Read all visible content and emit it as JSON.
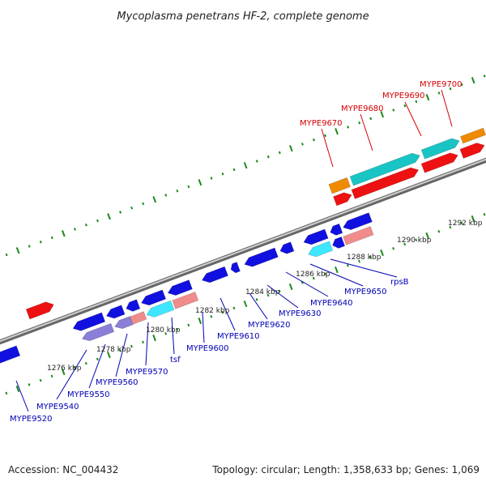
{
  "title": "Mycoplasma penetrans HF-2, complete genome",
  "footer": {
    "accession": "Accession: NC_004432",
    "summary": "Topology: circular; Length: 1,358,633 bp; Genes: 1,069"
  },
  "colors": {
    "forward_label": "#d40000",
    "reverse_label": "#0000b4",
    "dot_track": "#1a8a1a",
    "backbone": "#999999"
  },
  "ticks": [
    "1276 kbp",
    "1278 kbp",
    "1280 kbp",
    "1282 kbp",
    "1284 kbp",
    "1286 kbp",
    "1288 kbp",
    "1290 kbp",
    "1292 kbp"
  ],
  "forward_labels": [
    "MYPE9670",
    "MYPE9680",
    "MYPE9690",
    "MYPE9700"
  ],
  "reverse_labels": [
    "MYPE9520",
    "MYPE9540",
    "MYPE9550",
    "MYPE9560",
    "MYPE9570",
    "tsf",
    "MYPE9600",
    "MYPE9610",
    "MYPE9620",
    "MYPE9630",
    "MYPE9640",
    "MYPE9650",
    "rpsB"
  ]
}
